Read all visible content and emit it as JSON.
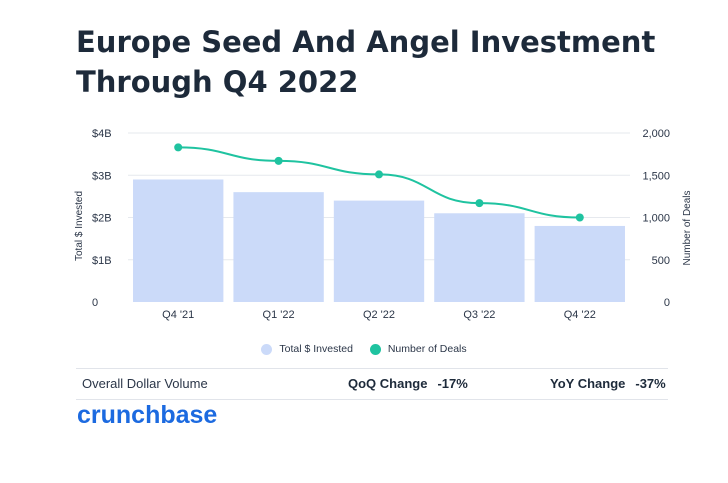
{
  "title_lines": [
    "Europe Seed And Angel Investment",
    "Through Q4 2022"
  ],
  "colors": {
    "bar": "#cbdaf9",
    "line": "#1fc3a0",
    "text": "#1d2a3a",
    "grid": "#e6e9ee",
    "brand": "#1c6ae0"
  },
  "chart_data": {
    "type": "bar",
    "categories": [
      "Q4 '21",
      "Q1 '22",
      "Q2 '22",
      "Q3 '22",
      "Q4 '22"
    ],
    "series": [
      {
        "name": "Total $ Invested",
        "type": "bar",
        "axis": "left",
        "values": [
          2.9,
          2.6,
          2.4,
          2.1,
          1.8
        ]
      },
      {
        "name": "Number of Deals",
        "type": "line",
        "axis": "right",
        "values": [
          1830,
          1670,
          1510,
          1170,
          1000
        ]
      }
    ],
    "ylabel": "Total $ Invested",
    "ylabel_right": "Number of Deals",
    "ylim": [
      0,
      4
    ],
    "ylim_right": [
      0,
      2000
    ],
    "yticks": [
      "0",
      "$1B",
      "$2B",
      "$3B",
      "$4B"
    ],
    "yticks_right": [
      "0",
      "500",
      "1,000",
      "1,500",
      "2,000"
    ],
    "grid": true,
    "legend": "bottom"
  },
  "summary": {
    "label": "Overall Dollar Volume",
    "qoq_label": "QoQ Change",
    "qoq_value": "-17%",
    "yoy_label": "YoY Change",
    "yoy_value": "-37%"
  },
  "logo_text": "crunchbase"
}
